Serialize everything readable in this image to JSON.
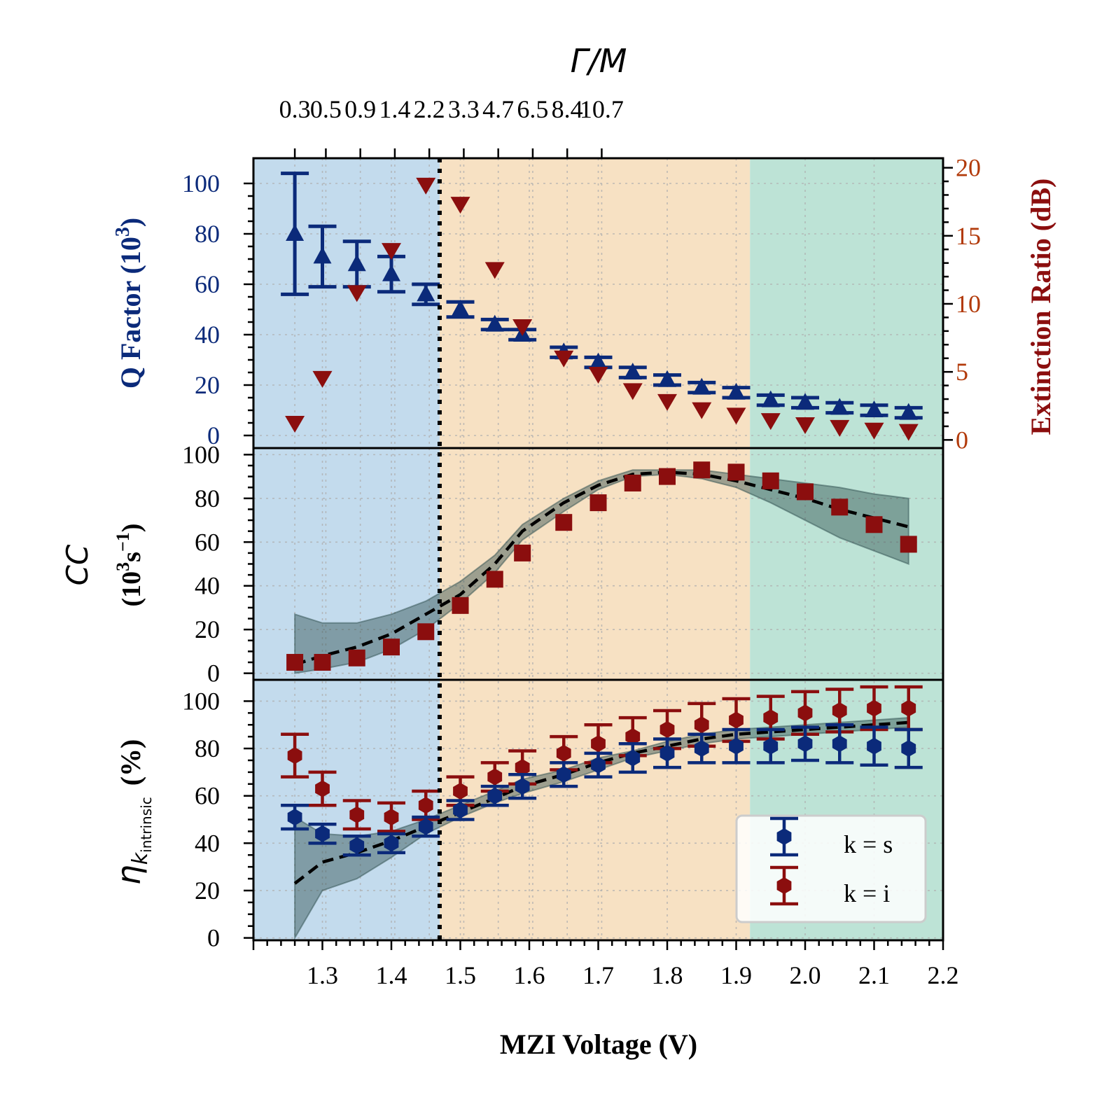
{
  "colors": {
    "region_low": "#c3dbed",
    "region_mid": "#f7e1c3",
    "region_high": "#bde3d6",
    "blue": "#0b2a7a",
    "red": "#8b0e0e",
    "orange_axis": "#b23a0a",
    "band": "#2f4f4f"
  },
  "top_axis": {
    "title": "Γ/M",
    "ticks": [
      {
        "x": 1.26,
        "label": "0.3"
      },
      {
        "x": 1.305,
        "label": "0.5"
      },
      {
        "x": 1.355,
        "label": "0.9"
      },
      {
        "x": 1.405,
        "label": "1.4"
      },
      {
        "x": 1.455,
        "label": "2.2"
      },
      {
        "x": 1.505,
        "label": "3.3"
      },
      {
        "x": 1.555,
        "label": "4.7"
      },
      {
        "x": 1.605,
        "label": "6.5"
      },
      {
        "x": 1.655,
        "label": "8.4"
      },
      {
        "x": 1.705,
        "label": "10.7"
      }
    ]
  },
  "x_axis": {
    "title": "MZI Voltage (V)",
    "xlim": [
      1.2,
      2.2
    ],
    "ticks": [
      "1.3",
      "1.4",
      "1.5",
      "1.6",
      "1.7",
      "1.8",
      "1.9",
      "2.0",
      "2.1",
      "2.2"
    ]
  },
  "regions": {
    "dotted_line_x": 1.47,
    "high_start_x": 1.92
  },
  "chart_data": [
    {
      "panel": "top",
      "type": "scatter",
      "ylabel_left": "Q Factor (10",
      "ylabel_left_sup": "3",
      "ylabel_left_end": ")",
      "ylabel_right": "Extinction Ratio (dB)",
      "ylim_left": [
        -5,
        110
      ],
      "ylim_right": [
        -0.6,
        20.7
      ],
      "yticks_left": [
        "0",
        "20",
        "40",
        "60",
        "80",
        "100"
      ],
      "yticks_right": [
        "0",
        "5",
        "10",
        "15",
        "20"
      ],
      "x": [
        1.26,
        1.3,
        1.35,
        1.4,
        1.45,
        1.5,
        1.55,
        1.59,
        1.65,
        1.7,
        1.75,
        1.8,
        1.85,
        1.9,
        1.95,
        2.0,
        2.05,
        2.1,
        2.15
      ],
      "series": [
        {
          "name": "Q Factor",
          "marker": "triangle-up",
          "values": [
            80,
            71,
            68,
            64,
            56,
            50,
            44,
            40,
            33,
            29,
            25,
            22,
            19,
            17,
            14,
            13,
            11,
            10,
            9
          ],
          "err": [
            24,
            12,
            9,
            7,
            4,
            3,
            2,
            2,
            2,
            2,
            2,
            2,
            2,
            2,
            2,
            2,
            2,
            2,
            2
          ]
        },
        {
          "name": "Extinction Ratio",
          "marker": "triangle-down",
          "values": [
            1.2,
            4.5,
            10.8,
            13.9,
            18.7,
            17.3,
            12.5,
            8.3,
            6.0,
            4.8,
            3.6,
            2.8,
            2.2,
            1.8,
            1.4,
            1.1,
            0.9,
            0.7,
            0.6
          ]
        }
      ]
    },
    {
      "panel": "middle",
      "type": "scatter",
      "ylabel_line1": "CC",
      "ylabel_line2_pre": "(10",
      "ylabel_line2_sup1": "3",
      "ylabel_line2_mid": "s",
      "ylabel_line2_sup2": "−1",
      "ylabel_line2_end": ")",
      "ylim": [
        -3,
        103
      ],
      "yticks": [
        "0",
        "20",
        "40",
        "60",
        "80",
        "100"
      ],
      "x": [
        1.26,
        1.3,
        1.35,
        1.4,
        1.45,
        1.5,
        1.55,
        1.59,
        1.65,
        1.7,
        1.75,
        1.8,
        1.85,
        1.9,
        1.95,
        2.0,
        2.05,
        2.1,
        2.15
      ],
      "series": [
        {
          "name": "CC measured",
          "marker": "square",
          "values": [
            5,
            5,
            7,
            12,
            19,
            31,
            43,
            55,
            69,
            78,
            87,
            90,
            93,
            92,
            88,
            83,
            76,
            68,
            59
          ]
        },
        {
          "name": "CC model",
          "style": "dashed",
          "values": [
            4,
            8,
            12,
            18,
            27,
            36,
            50,
            65,
            78,
            86,
            91,
            92,
            91,
            88,
            84,
            80,
            75,
            71,
            67
          ]
        },
        {
          "name": "CC band upper",
          "values": [
            27,
            23,
            23,
            27,
            33,
            42,
            54,
            68,
            80,
            88,
            93,
            93,
            93,
            91,
            89,
            87,
            85,
            82,
            80
          ]
        },
        {
          "name": "CC band lower",
          "values": [
            0,
            2,
            5,
            11,
            20,
            32,
            46,
            61,
            74,
            84,
            90,
            91,
            89,
            85,
            78,
            70,
            62,
            56,
            50
          ]
        }
      ]
    },
    {
      "panel": "bottom",
      "type": "scatter",
      "ylabel_main": "η",
      "ylabel_sub": "k",
      "ylabel_subsub": "intrinsic",
      "ylabel_end": "(%)",
      "ylim": [
        -1,
        109
      ],
      "yticks": [
        "0",
        "20",
        "40",
        "60",
        "80",
        "100"
      ],
      "x": [
        1.26,
        1.3,
        1.35,
        1.4,
        1.45,
        1.5,
        1.55,
        1.59,
        1.65,
        1.7,
        1.75,
        1.8,
        1.85,
        1.9,
        1.95,
        2.0,
        2.05,
        2.1,
        2.15
      ],
      "legend": [
        "k = s",
        "k = i"
      ],
      "series": [
        {
          "name": "k = s",
          "marker": "hexagon",
          "values": [
            51,
            44,
            39,
            40,
            47,
            54,
            60,
            64,
            69,
            73,
            76,
            78,
            80,
            81,
            81,
            82,
            82,
            81,
            80
          ],
          "err": [
            5,
            4,
            4,
            4,
            4,
            4,
            4,
            5,
            5,
            5,
            6,
            6,
            6,
            7,
            7,
            7,
            8,
            8,
            8
          ]
        },
        {
          "name": "k = i",
          "marker": "hexagon",
          "values": [
            77,
            63,
            52,
            51,
            56,
            62,
            68,
            72,
            78,
            82,
            85,
            88,
            90,
            92,
            93,
            95,
            96,
            97,
            97
          ],
          "err": [
            9,
            7,
            6,
            6,
            6,
            6,
            6,
            7,
            7,
            8,
            8,
            8,
            9,
            9,
            9,
            9,
            9,
            9,
            9
          ]
        },
        {
          "name": "eta model",
          "style": "dashed",
          "values": [
            23,
            32,
            36,
            41,
            47,
            53,
            59,
            64,
            69,
            74,
            78,
            81,
            84,
            86,
            87,
            88,
            89,
            90,
            91
          ]
        },
        {
          "name": "eta band upper",
          "values": [
            51,
            44,
            43,
            45,
            50,
            56,
            62,
            67,
            71,
            76,
            79,
            83,
            86,
            88,
            89,
            90,
            91,
            92,
            93
          ]
        },
        {
          "name": "eta band lower",
          "values": [
            0,
            20,
            25,
            34,
            44,
            51,
            57,
            61,
            66,
            71,
            76,
            79,
            82,
            84,
            85,
            86,
            87,
            88,
            89
          ]
        }
      ]
    }
  ]
}
